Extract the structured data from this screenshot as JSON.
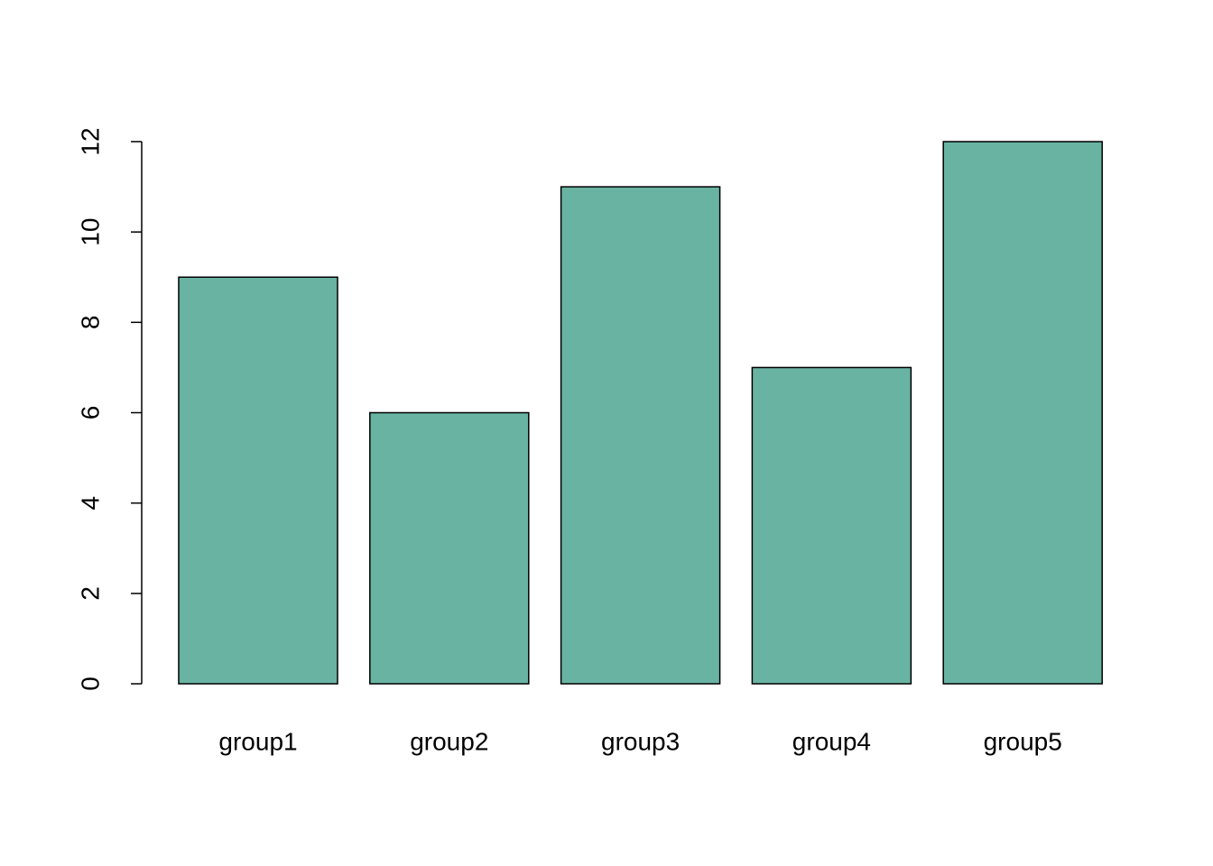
{
  "chart_data": {
    "type": "bar",
    "categories": [
      "group1",
      "group2",
      "group3",
      "group4",
      "group5"
    ],
    "values": [
      9,
      6,
      11,
      7,
      12
    ],
    "color": "#69b3a2",
    "ylim": [
      0,
      12
    ],
    "yticks": [
      0,
      2,
      4,
      6,
      8,
      10,
      12
    ],
    "grid": false
  }
}
